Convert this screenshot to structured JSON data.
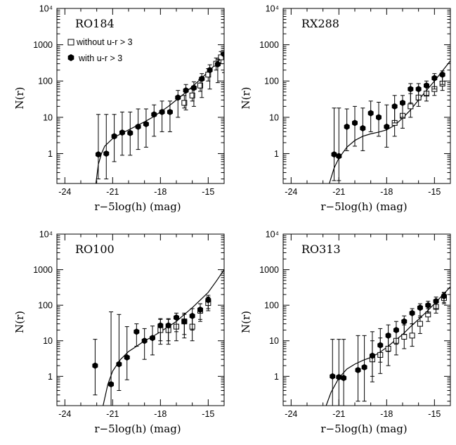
{
  "chart_data": [
    {
      "type": "scatter",
      "panel": "RO184",
      "xlabel": "r−5log(h) (mag)",
      "ylabel": "N(r)",
      "xlim": [
        -24.5,
        -14
      ],
      "ylim": [
        0.15,
        10000
      ],
      "yscale": "log",
      "xticks": [
        -24,
        -21,
        -18,
        -15
      ],
      "yticks": [
        1,
        10,
        100,
        1000,
        10000
      ],
      "ytick_labels": [
        "1",
        "10",
        "100",
        "1000",
        "10⁴"
      ],
      "legend": {
        "position": "top-left",
        "entries": [
          "without u-r > 3",
          "with u-r > 3"
        ]
      },
      "series": [
        {
          "name": "without u-r > 3",
          "marker": "open-square",
          "x": [
            -16.5,
            -16.0,
            -15.5,
            -15.0,
            -14.5,
            -14.2
          ],
          "y": [
            25,
            40,
            75,
            150,
            300,
            450
          ],
          "yerr_low": [
            18,
            28,
            52,
            100,
            200,
            300
          ],
          "yerr_high": [
            40,
            60,
            110,
            220,
            430,
            650
          ]
        },
        {
          "name": "with u-r > 3",
          "marker": "filled-hexagon",
          "x": [
            -21.9,
            -21.4,
            -20.9,
            -20.4,
            -19.9,
            -19.4,
            -18.9,
            -18.4,
            -17.9,
            -17.4,
            -16.9,
            -16.4,
            -15.9,
            -15.4,
            -14.9,
            -14.4,
            -14.0
          ],
          "y": [
            0.95,
            1.0,
            3.0,
            3.8,
            3.7,
            5.5,
            6.5,
            12,
            14,
            14,
            35,
            55,
            65,
            115,
            200,
            290,
            550
          ],
          "yerr_low": [
            0.2,
            0.2,
            0.6,
            0.9,
            0.9,
            1.3,
            1.5,
            3,
            4,
            4,
            10,
            16,
            20,
            35,
            60,
            90,
            170
          ],
          "yerr_high": [
            12,
            12,
            12,
            14,
            14,
            17,
            17,
            22,
            28,
            28,
            55,
            80,
            95,
            160,
            280,
            400,
            800
          ]
        }
      ],
      "fit_curve": {
        "x": [
          -22.05,
          -21.9,
          -21.7,
          -21.5,
          -21.0,
          -20.5,
          -20.0,
          -19.5,
          -19.0,
          -18.5,
          -18.0,
          -17.5,
          -17.0,
          -16.5,
          -16.0,
          -15.5,
          -15.0,
          -14.5,
          -14.0
        ],
        "y": [
          0.15,
          0.5,
          1.0,
          1.6,
          2.6,
          3.5,
          4.5,
          5.8,
          7.5,
          10,
          14,
          20,
          30,
          45,
          70,
          110,
          180,
          300,
          520
        ]
      }
    },
    {
      "type": "scatter",
      "panel": "RX288",
      "xlabel": "r−5log(h) (mag)",
      "ylabel": "N(r)",
      "xlim": [
        -24.5,
        -14
      ],
      "ylim": [
        0.15,
        10000
      ],
      "yscale": "log",
      "xticks": [
        -24,
        -21,
        -18,
        -15
      ],
      "yticks": [
        1,
        10,
        100,
        1000,
        10000
      ],
      "ytick_labels": [
        "1",
        "10",
        "100",
        "1000",
        "10⁴"
      ],
      "series": [
        {
          "name": "without u-r > 3",
          "marker": "open-square",
          "x": [
            -17.5,
            -17.0,
            -16.5,
            -16.0,
            -15.5,
            -15.0,
            -14.5
          ],
          "y": [
            7,
            11,
            20,
            35,
            45,
            60,
            85
          ],
          "yerr_low": [
            3,
            5,
            10,
            20,
            28,
            40,
            55
          ],
          "yerr_high": [
            18,
            28,
            45,
            65,
            85,
            110,
            150
          ]
        },
        {
          "name": "with u-r > 3",
          "marker": "filled-hexagon",
          "x": [
            -21.3,
            -21.0,
            -20.5,
            -20.0,
            -19.5,
            -19.0,
            -18.5,
            -18.0,
            -17.5,
            -17.0,
            -16.5,
            -16.0,
            -15.5,
            -15.0,
            -14.5
          ],
          "y": [
            0.95,
            0.85,
            5.5,
            7,
            5,
            13,
            10,
            5.5,
            20,
            25,
            60,
            60,
            75,
            120,
            150
          ],
          "yerr_low": [
            0.18,
            0.18,
            1.2,
            1.6,
            1.2,
            4,
            3,
            1.5,
            7,
            10,
            25,
            30,
            40,
            60,
            80
          ],
          "yerr_high": [
            18,
            18,
            17,
            20,
            18,
            28,
            26,
            22,
            40,
            40,
            85,
            85,
            100,
            160,
            190
          ]
        }
      ],
      "fit_curve": {
        "x": [
          -21.6,
          -21.3,
          -21.0,
          -20.5,
          -20.0,
          -19.5,
          -19.0,
          -18.5,
          -18.0,
          -17.5,
          -17.0,
          -16.5,
          -16.0,
          -15.5,
          -15.0,
          -14.5,
          -14.0
        ],
        "y": [
          0.15,
          0.4,
          0.75,
          1.5,
          2.3,
          3.0,
          3.5,
          3.9,
          4.5,
          6.0,
          9.5,
          16,
          30,
          55,
          100,
          190,
          360
        ]
      }
    },
    {
      "type": "scatter",
      "panel": "RO100",
      "xlabel": "r−5log(h) (mag)",
      "ylabel": "N(r)",
      "xlim": [
        -24.5,
        -14
      ],
      "ylim": [
        0.15,
        10000
      ],
      "yscale": "log",
      "xticks": [
        -24,
        -21,
        -18,
        -15
      ],
      "yticks": [
        1,
        10,
        100,
        1000,
        10000
      ],
      "ytick_labels": [
        "1",
        "10",
        "100",
        "1000",
        "10⁴"
      ],
      "series": [
        {
          "name": "without u-r > 3",
          "marker": "open-square",
          "x": [
            -18.0,
            -17.5,
            -17.0,
            -16.5,
            -16.0,
            -15.5,
            -15.0
          ],
          "y": [
            20,
            20,
            25,
            35,
            25,
            70,
            115
          ],
          "yerr_low": [
            8,
            8,
            10,
            15,
            10,
            35,
            70
          ],
          "yerr_high": [
            40,
            40,
            45,
            60,
            45,
            110,
            170
          ]
        },
        {
          "name": "with u-r > 3",
          "marker": "filled-hexagon",
          "x": [
            -22.1,
            -21.1,
            -20.6,
            -20.1,
            -19.5,
            -19.0,
            -18.5,
            -18.0,
            -17.5,
            -17.0,
            -16.5,
            -16.0,
            -15.5,
            -15.0
          ],
          "y": [
            2.0,
            0.6,
            2.2,
            3.4,
            18,
            10,
            12,
            27,
            27,
            45,
            35,
            50,
            75,
            140
          ],
          "yerr_low": [
            0.3,
            0.15,
            0.4,
            0.8,
            7,
            3,
            4,
            10,
            10,
            18,
            12,
            20,
            40,
            80
          ],
          "yerr_high": [
            11,
            65,
            55,
            25,
            30,
            22,
            26,
            42,
            42,
            60,
            55,
            80,
            110,
            190
          ]
        }
      ],
      "fit_curve": {
        "x": [
          -21.6,
          -21.3,
          -21.0,
          -20.5,
          -20.0,
          -19.5,
          -19.0,
          -18.5,
          -18.0,
          -17.5,
          -17.0,
          -16.5,
          -16.0,
          -15.5,
          -15.0,
          -14.5,
          -14.0
        ],
        "y": [
          0.15,
          0.6,
          1.4,
          3.0,
          5.0,
          7.0,
          10,
          13,
          18,
          25,
          35,
          55,
          85,
          140,
          230,
          470,
          1000
        ]
      }
    },
    {
      "type": "scatter",
      "panel": "RO313",
      "xlabel": "r−5log(h) (mag)",
      "ylabel": "N(r)",
      "xlim": [
        -24.5,
        -14
      ],
      "ylim": [
        0.15,
        10000
      ],
      "yscale": "log",
      "xticks": [
        -24,
        -21,
        -18,
        -15
      ],
      "yticks": [
        1,
        10,
        100,
        1000,
        10000
      ],
      "ytick_labels": [
        "1",
        "10",
        "100",
        "1000",
        "10⁴"
      ],
      "series": [
        {
          "name": "without u-r > 3",
          "marker": "open-square",
          "x": [
            -18.9,
            -18.4,
            -17.9,
            -17.4,
            -16.9,
            -16.4,
            -15.9,
            -15.4,
            -14.9,
            -14.4
          ],
          "y": [
            3,
            4,
            6,
            10,
            13,
            14,
            30,
            55,
            90,
            160
          ],
          "yerr_low": [
            0.7,
            1.2,
            2,
            4,
            6,
            7,
            16,
            35,
            60,
            110
          ],
          "yerr_high": [
            10,
            12,
            16,
            22,
            28,
            30,
            50,
            80,
            130,
            220
          ]
        },
        {
          "name": "with u-r > 3",
          "marker": "filled-hexagon",
          "x": [
            -21.4,
            -21.0,
            -20.7,
            -19.8,
            -19.4,
            -18.9,
            -18.4,
            -17.9,
            -17.4,
            -16.9,
            -16.4,
            -15.9,
            -15.4,
            -14.9,
            -14.4
          ],
          "y": [
            1.0,
            0.95,
            0.9,
            1.5,
            1.8,
            3.8,
            7.5,
            14,
            20,
            35,
            60,
            85,
            100,
            130,
            180
          ],
          "yerr_low": [
            0.15,
            0.15,
            0.15,
            0.2,
            0.2,
            1.0,
            2.5,
            5,
            8,
            15,
            30,
            45,
            60,
            80,
            120
          ],
          "yerr_high": [
            11,
            11,
            11,
            14,
            14,
            18,
            22,
            28,
            35,
            50,
            80,
            110,
            130,
            170,
            230
          ]
        }
      ],
      "fit_curve": {
        "x": [
          -21.8,
          -21.5,
          -21.0,
          -20.5,
          -20.0,
          -19.5,
          -19.0,
          -18.5,
          -18.0,
          -17.5,
          -17.0,
          -16.5,
          -16.0,
          -15.5,
          -15.0,
          -14.5,
          -14.0
        ],
        "y": [
          0.15,
          0.35,
          0.9,
          1.6,
          2.2,
          2.8,
          3.4,
          4.5,
          6.5,
          10,
          15,
          25,
          40,
          65,
          110,
          190,
          330
        ]
      }
    }
  ]
}
